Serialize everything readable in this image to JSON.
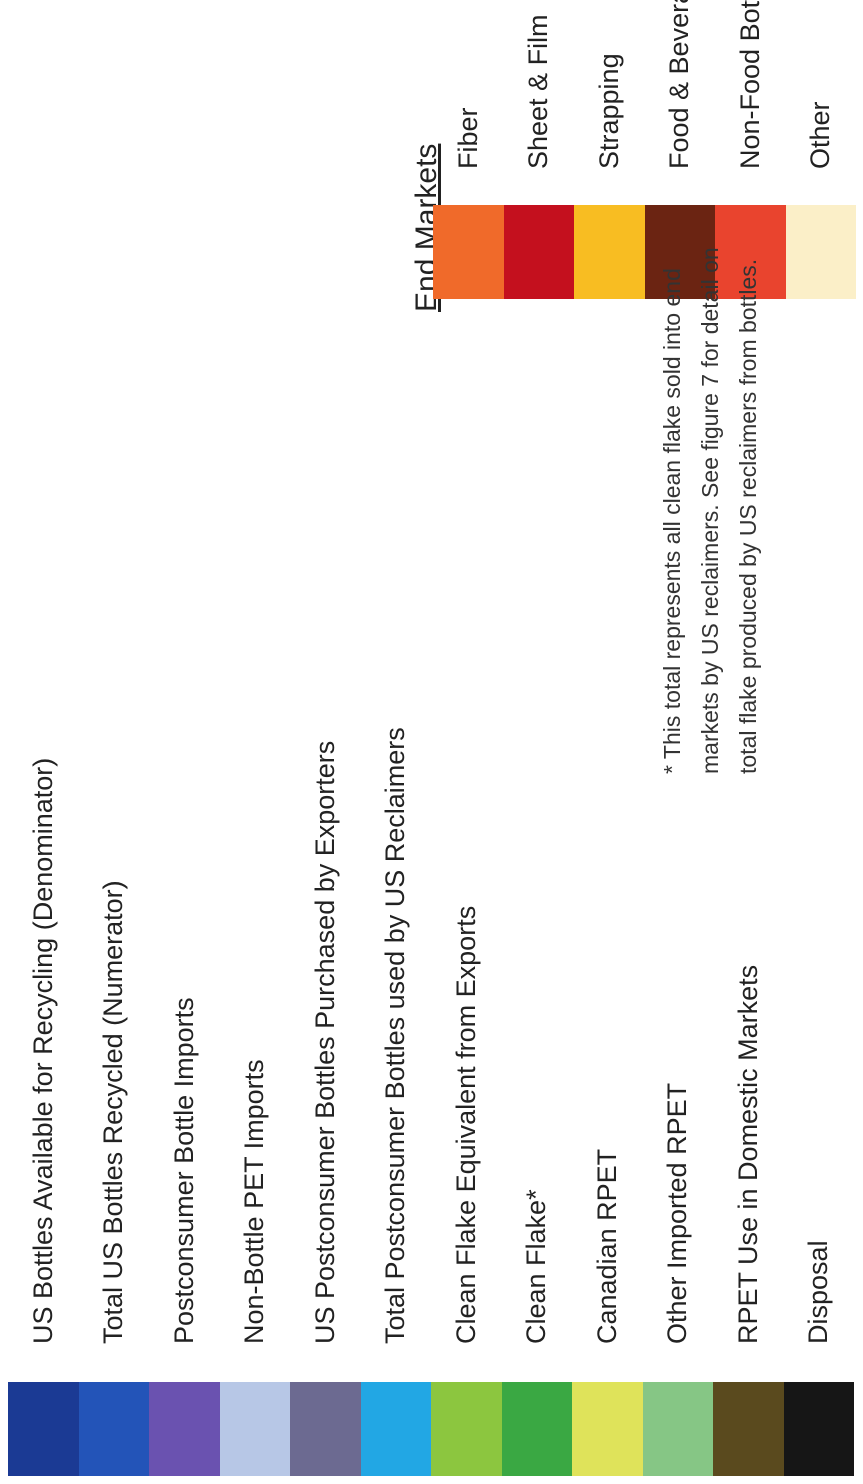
{
  "flow_stages": [
    {
      "label": "US Bottles Available for Recycling (Denominator)",
      "color": "#1b3a94"
    },
    {
      "label": "Total US Bottles Recycled (Numerator)",
      "color": "#2354b8"
    },
    {
      "label": "Postconsumer Bottle Imports",
      "color": "#6a52b0"
    },
    {
      "label": "Non-Bottle PET Imports",
      "color": "#b7c7e6"
    },
    {
      "label": "US Postconsumer Bottles Purchased by Exporters",
      "color": "#6c6a91"
    },
    {
      "label": "Total Postconsumer Bottles used by US Reclaimers",
      "color": "#22a7e4"
    },
    {
      "label": "Clean Flake Equivalent from Exports",
      "color": "#8cc63f"
    },
    {
      "label": "Clean Flake*",
      "color": "#3aa843"
    },
    {
      "label": "Canadian RPET",
      "color": "#dfe35a"
    },
    {
      "label": "Other Imported RPET",
      "color": "#86c685"
    },
    {
      "label": "RPET Use in Domestic Markets",
      "color": "#5a4a1e"
    },
    {
      "label": "Disposal",
      "color": "#161616"
    }
  ],
  "end_markets": {
    "title": "End Markets",
    "items": [
      {
        "label": "Fiber",
        "color": "#f06a2a"
      },
      {
        "label": "Sheet & Film",
        "color": "#c4101e"
      },
      {
        "label": "Strapping",
        "color": "#f8bd22"
      },
      {
        "label": "Food & Beverage Bottles",
        "color": "#6b2412"
      },
      {
        "label": "Non-Food Bottles",
        "color": "#e9442e"
      },
      {
        "label": "Other",
        "color": "#fbefc8"
      }
    ]
  },
  "footnote": {
    "line1": "* This total represents all clean flake sold into end",
    "line2": "markets by US reclaimers. See figure 7 for detail on",
    "line3": "total flake produced by US reclaimers from bottles."
  }
}
